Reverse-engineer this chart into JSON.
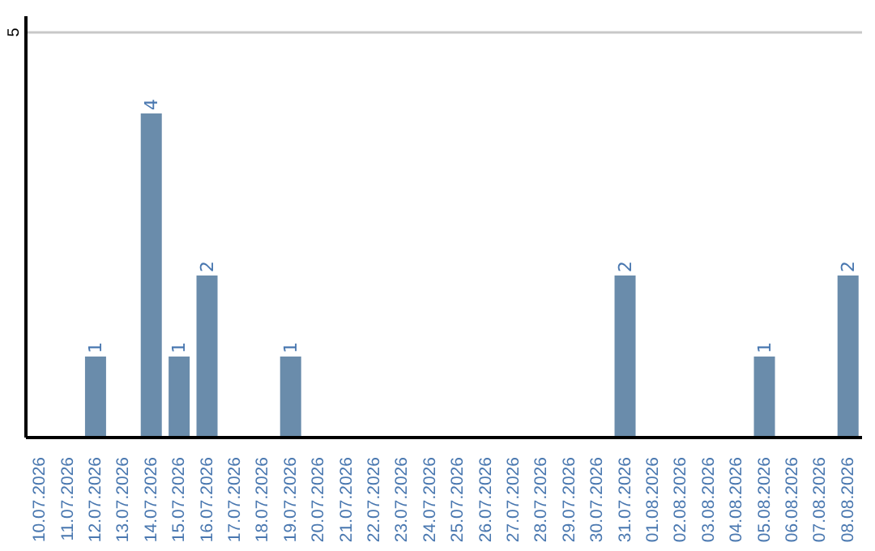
{
  "chart_data": {
    "type": "bar",
    "categories": [
      "10.07.2026",
      "11.07.2026",
      "12.07.2026",
      "13.07.2026",
      "14.07.2026",
      "15.07.2026",
      "16.07.2026",
      "17.07.2026",
      "18.07.2026",
      "19.07.2026",
      "20.07.2026",
      "21.07.2026",
      "22.07.2026",
      "23.07.2026",
      "24.07.2026",
      "25.07.2026",
      "26.07.2026",
      "27.07.2026",
      "28.07.2026",
      "29.07.2026",
      "30.07.2026",
      "31.07.2026",
      "01.08.2026",
      "02.08.2026",
      "03.08.2026",
      "04.08.2026",
      "05.08.2026",
      "06.08.2026",
      "07.08.2026",
      "08.08.2026"
    ],
    "values": [
      0,
      0,
      1,
      0,
      4,
      1,
      2,
      0,
      0,
      1,
      0,
      0,
      0,
      0,
      0,
      0,
      0,
      0,
      0,
      0,
      0,
      2,
      0,
      0,
      0,
      0,
      1,
      0,
      0,
      2
    ],
    "value_labels": [
      null,
      null,
      "1",
      null,
      "4",
      "1",
      "2",
      null,
      null,
      "1",
      null,
      null,
      null,
      null,
      null,
      null,
      null,
      null,
      null,
      null,
      null,
      "2",
      null,
      null,
      null,
      null,
      "1",
      null,
      null,
      "2"
    ],
    "color": "#6a8cab",
    "ylim": [
      0,
      5.2
    ],
    "yticks": [
      5
    ],
    "grid": "y"
  }
}
